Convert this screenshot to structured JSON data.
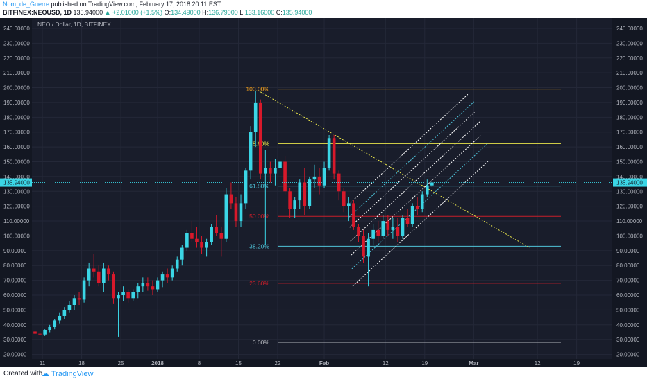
{
  "header": {
    "author": "Nom_de_Guerre",
    "published": " published on TradingView.com, February 17, 2018 20:11 EST",
    "symbol": "BITFINEX:NEOUSD, 1D",
    "last": "135.94000",
    "change": "▲ +2.01000 (+1.5%)",
    "o_label": "O:",
    "o": "134.49000",
    "h_label": "H:",
    "h": "136.79000",
    "l_label": "L:",
    "l": "133.16000",
    "c_label": "C:",
    "c": "135.94000"
  },
  "footer": {
    "created": "Created with",
    "brand": "TradingView"
  },
  "chart_data": {
    "type": "candlestick",
    "title": "NEO / Dollar, 1D, BITFINEX",
    "ylim": [
      17,
      247
    ],
    "y_ticks": [
      "20.00000",
      "30.00000",
      "40.00000",
      "50.00000",
      "60.00000",
      "70.00000",
      "80.00000",
      "90.00000",
      "100.00000",
      "110.00000",
      "120.00000",
      "130.00000",
      "140.00000",
      "150.00000",
      "160.00000",
      "170.00000",
      "180.00000",
      "190.00000",
      "200.00000",
      "210.00000",
      "220.00000",
      "230.00000",
      "240.00000"
    ],
    "x_ticks": [
      "11",
      "18",
      "25",
      "2018",
      "8",
      "15",
      "22",
      "Feb",
      "12",
      "19",
      "Mar",
      "12",
      "19"
    ],
    "last_price_label": "135.94000",
    "last_price": 135.94,
    "fib_levels": [
      {
        "label": "100.00%",
        "value": 199,
        "color": "#f7a21b"
      },
      {
        "label": "78.60%",
        "value": 162.2,
        "color": "#e8e44a"
      },
      {
        "label": "61.80%",
        "value": 133.6,
        "color": "#4fc3d9"
      },
      {
        "label": "50.00%",
        "value": 113.2,
        "color": "#c81e2a"
      },
      {
        "label": "38.20%",
        "value": 93.0,
        "color": "#4fc3d9"
      },
      {
        "label": "23.60%",
        "value": 68.0,
        "color": "#c81e2a"
      },
      {
        "label": "0.00%",
        "value": 28.2,
        "color": "#b0b3ba"
      }
    ],
    "candles": [
      [
        35.5,
        36.0,
        33.0,
        34.0
      ],
      [
        34.0,
        36.5,
        32.5,
        33.5
      ],
      [
        33.5,
        37.0,
        32.5,
        36.5
      ],
      [
        36.5,
        40.0,
        35.0,
        38.5
      ],
      [
        38.5,
        44.0,
        37.0,
        43.0
      ],
      [
        43.0,
        48.0,
        41.0,
        46.0
      ],
      [
        46.0,
        52.0,
        44.0,
        50.0
      ],
      [
        50.0,
        56.0,
        48.0,
        53.0
      ],
      [
        53.0,
        60.0,
        50.0,
        58.0
      ],
      [
        58.0,
        62.0,
        53.0,
        57.0
      ],
      [
        57.0,
        72.0,
        55.0,
        70.0
      ],
      [
        70.0,
        82.0,
        66.0,
        78.0
      ],
      [
        78.0,
        88.0,
        72.0,
        76.0
      ],
      [
        76.0,
        80.0,
        66.0,
        68.0
      ],
      [
        68.0,
        82.0,
        62.0,
        78.0
      ],
      [
        78.0,
        80.0,
        70.0,
        74.0
      ],
      [
        74.0,
        76.0,
        54.0,
        58.0
      ],
      [
        58.0,
        62.0,
        32.0,
        60.0
      ],
      [
        60.0,
        66.0,
        56.0,
        62.0
      ],
      [
        62.0,
        64.0,
        55.0,
        58.0
      ],
      [
        58.0,
        64.0,
        56.0,
        62.0
      ],
      [
        62.0,
        68.0,
        58.0,
        66.0
      ],
      [
        66.0,
        72.0,
        62.0,
        68.0
      ],
      [
        68.0,
        72.0,
        63.0,
        66.0
      ],
      [
        66.0,
        70.0,
        60.0,
        64.0
      ],
      [
        64.0,
        72.0,
        62.0,
        70.0
      ],
      [
        70.0,
        76.0,
        65.0,
        74.0
      ],
      [
        74.0,
        78.0,
        68.0,
        72.0
      ],
      [
        72.0,
        80.0,
        70.0,
        78.0
      ],
      [
        78.0,
        86.0,
        76.0,
        84.0
      ],
      [
        84.0,
        94.0,
        80.0,
        92.0
      ],
      [
        92.0,
        104.0,
        90.0,
        102.0
      ],
      [
        102.0,
        110.0,
        96.0,
        98.0
      ],
      [
        98.0,
        106.0,
        92.0,
        96.0
      ],
      [
        96.0,
        100.0,
        88.0,
        92.0
      ],
      [
        92.0,
        98.0,
        86.0,
        96.0
      ],
      [
        96.0,
        108.0,
        94.0,
        106.0
      ],
      [
        106.0,
        114.0,
        100.0,
        102.0
      ],
      [
        102.0,
        106.0,
        86.0,
        98.0
      ],
      [
        98.0,
        132.0,
        96.0,
        128.0
      ],
      [
        128.0,
        136.0,
        118.0,
        122.0
      ],
      [
        122.0,
        126.0,
        106.0,
        110.0
      ],
      [
        110.0,
        128.0,
        106.0,
        122.0
      ],
      [
        122.0,
        146.0,
        118.0,
        144.0
      ],
      [
        144.0,
        174.0,
        138.0,
        170.0
      ],
      [
        170.0,
        198.0,
        160.0,
        190.0
      ],
      [
        190.0,
        192.0,
        138.0,
        142.0
      ],
      [
        142.0,
        158.0,
        94.0,
        146.0
      ],
      [
        146.0,
        150.0,
        136.0,
        142.0
      ],
      [
        142.0,
        152.0,
        134.0,
        146.0
      ],
      [
        146.0,
        158.0,
        140.0,
        150.0
      ],
      [
        150.0,
        154.0,
        128.0,
        130.0
      ],
      [
        130.0,
        132.0,
        112.0,
        118.0
      ],
      [
        118.0,
        126.0,
        112.0,
        124.0
      ],
      [
        124.0,
        138.0,
        118.0,
        136.0
      ],
      [
        136.0,
        146.0,
        114.0,
        120.0
      ],
      [
        120.0,
        140.0,
        118.0,
        138.0
      ],
      [
        138.0,
        148.0,
        132.0,
        140.0
      ],
      [
        140.0,
        146.0,
        128.0,
        134.0
      ],
      [
        134.0,
        150.0,
        132.0,
        146.0
      ],
      [
        146.0,
        168.0,
        144.0,
        166.0
      ],
      [
        166.0,
        168.0,
        138.0,
        142.0
      ],
      [
        142.0,
        144.0,
        124.0,
        130.0
      ],
      [
        130.0,
        132.0,
        116.0,
        120.0
      ],
      [
        120.0,
        126.0,
        110.0,
        122.0
      ],
      [
        122.0,
        124.0,
        104.0,
        106.0
      ],
      [
        106.0,
        108.0,
        96.0,
        100.0
      ],
      [
        100.0,
        104.0,
        82.0,
        86.0
      ],
      [
        86.0,
        102.0,
        66.0,
        98.0
      ],
      [
        98.0,
        108.0,
        94.0,
        104.0
      ],
      [
        104.0,
        110.0,
        96.0,
        100.0
      ],
      [
        100.0,
        114.0,
        98.0,
        110.0
      ],
      [
        110.0,
        114.0,
        100.0,
        104.0
      ],
      [
        104.0,
        112.0,
        98.0,
        106.0
      ],
      [
        106.0,
        112.0,
        96.0,
        100.0
      ],
      [
        100.0,
        114.0,
        98.0,
        112.0
      ],
      [
        112.0,
        118.0,
        106.0,
        108.0
      ],
      [
        108.0,
        122.0,
        106.0,
        120.0
      ],
      [
        120.0,
        126.0,
        114.0,
        118.0
      ],
      [
        118.0,
        130.0,
        116.0,
        128.0
      ],
      [
        128.0,
        138.0,
        126.0,
        134.0
      ],
      [
        134.0,
        137.0,
        133.0,
        136.0
      ]
    ]
  }
}
